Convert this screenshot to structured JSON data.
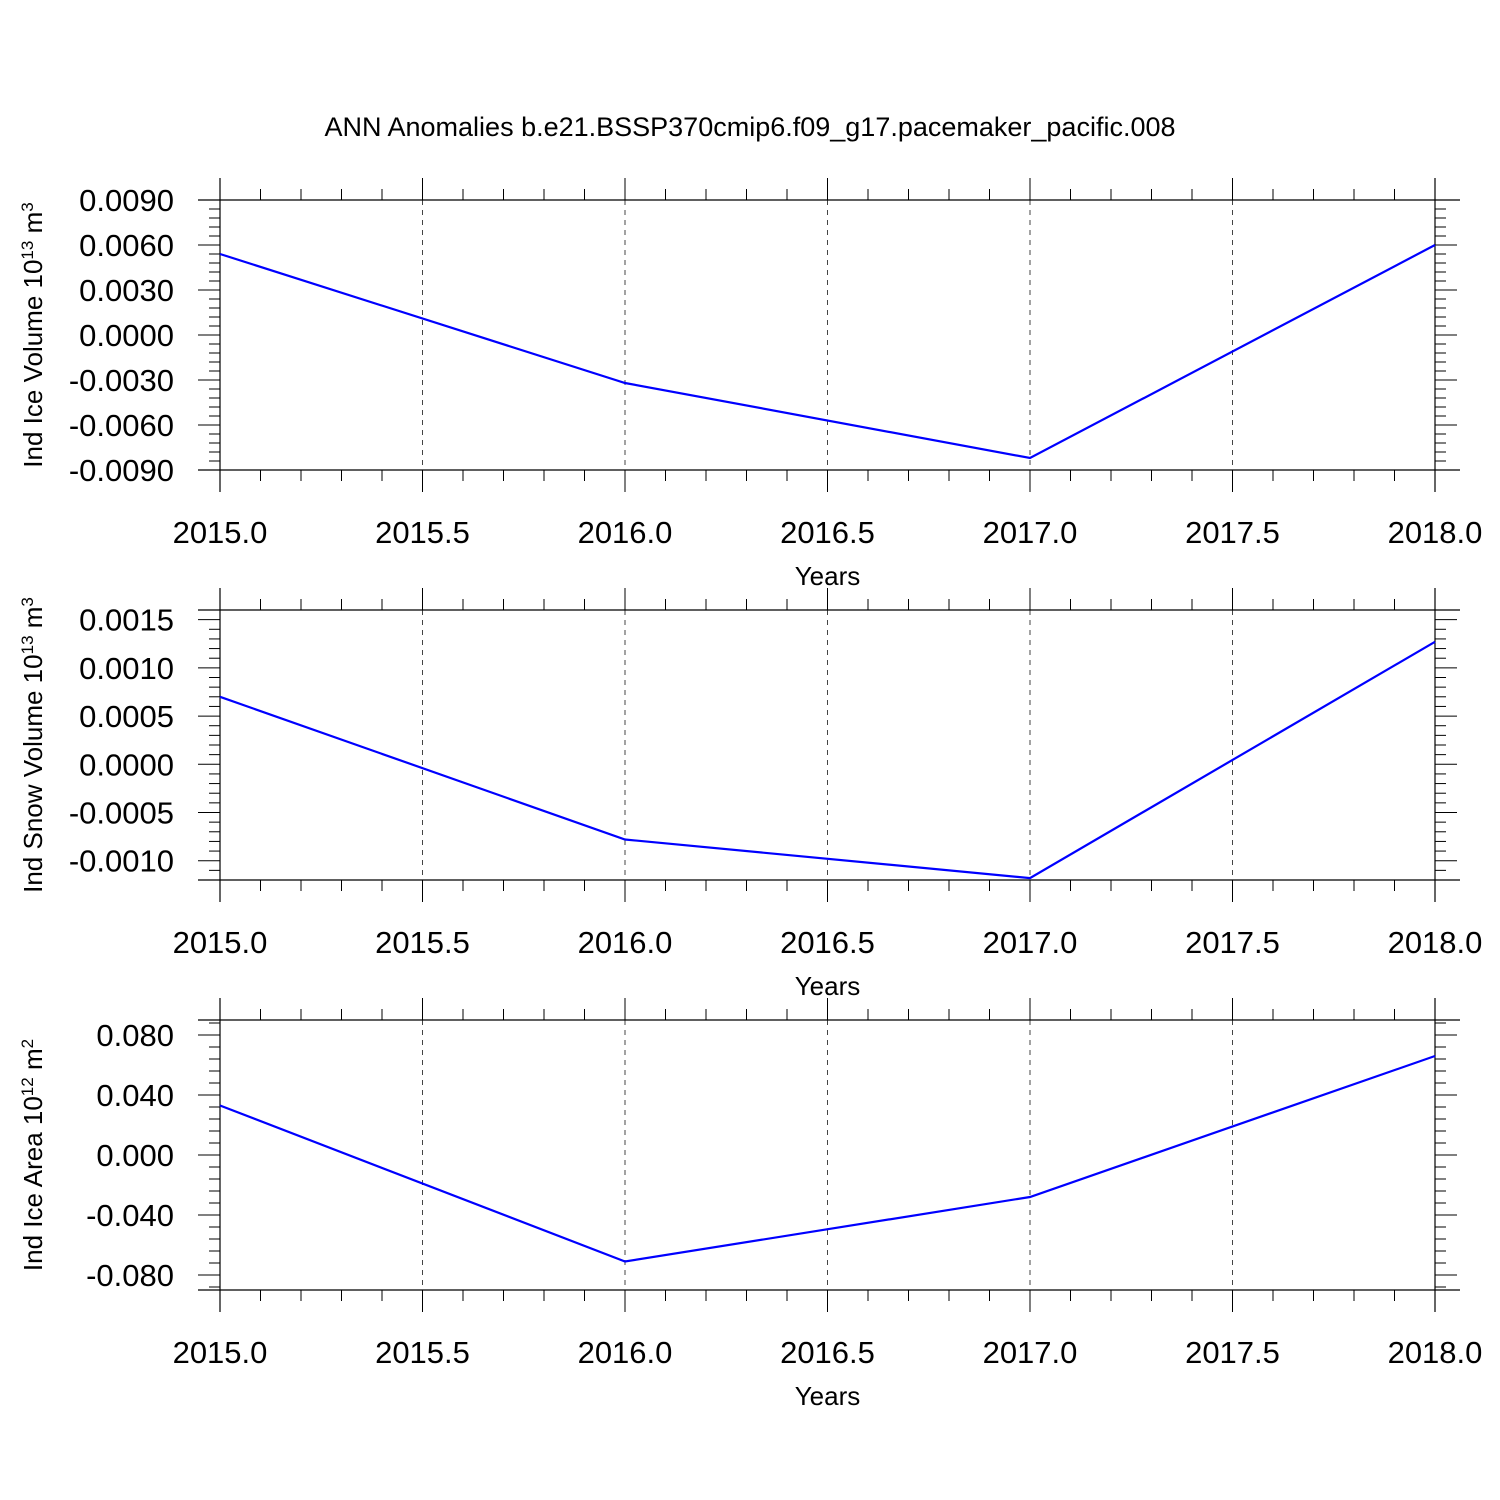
{
  "title": "ANN Anomalies b.e21.BSSP370cmip6.f09_g17.pacemaker_pacific.008",
  "line_color": "#0000ff",
  "chart_data": [
    {
      "type": "line",
      "title": "",
      "xlabel": "Years",
      "ylabel": {
        "main": "Ind Ice Volume 10",
        "exp": "13",
        "unit": " m",
        "unit_exp": "3"
      },
      "x": [
        2015,
        2016,
        2017,
        2018
      ],
      "series": [
        {
          "values": [
            0.0054,
            -0.0032,
            -0.0082,
            0.006
          ]
        }
      ],
      "xlim": [
        2015,
        2018
      ],
      "ylim": [
        -0.009,
        0.009
      ],
      "xticks": [
        2015.0,
        2015.5,
        2016.0,
        2016.5,
        2017.0,
        2017.5,
        2018.0
      ],
      "xtick_labels": [
        "2015.0",
        "2015.5",
        "2016.0",
        "2016.5",
        "2017.0",
        "2017.5",
        "2018.0"
      ],
      "yticks": [
        0.009,
        0.006,
        0.003,
        0.0,
        -0.003,
        -0.006,
        -0.009
      ],
      "ytick_labels": [
        "0.0090",
        "0.0060",
        "0.0030",
        "0.0000",
        "-0.0030",
        "-0.0060",
        "-0.0090"
      ],
      "grid": "vertical dashed at x ticks"
    },
    {
      "type": "line",
      "title": "",
      "xlabel": "Years",
      "ylabel": {
        "main": "Ind Snow Volume 10",
        "exp": "13",
        "unit": " m",
        "unit_exp": "3"
      },
      "x": [
        2015,
        2016,
        2017,
        2018
      ],
      "series": [
        {
          "values": [
            0.0007,
            -0.00078,
            -0.00118,
            0.00127
          ]
        }
      ],
      "xlim": [
        2015,
        2018
      ],
      "ylim": [
        -0.0012,
        0.0016
      ],
      "xticks": [
        2015.0,
        2015.5,
        2016.0,
        2016.5,
        2017.0,
        2017.5,
        2018.0
      ],
      "xtick_labels": [
        "2015.0",
        "2015.5",
        "2016.0",
        "2016.5",
        "2017.0",
        "2017.5",
        "2018.0"
      ],
      "yticks": [
        0.0015,
        0.001,
        0.0005,
        0.0,
        -0.0005,
        -0.001
      ],
      "ytick_labels": [
        "0.0015",
        "0.0010",
        "0.0005",
        "0.0000",
        "-0.0005",
        "-0.0010"
      ],
      "grid": "vertical dashed at x ticks"
    },
    {
      "type": "line",
      "title": "",
      "xlabel": "Years",
      "ylabel": {
        "main": "Ind Ice Area 10",
        "exp": "12",
        "unit": " m",
        "unit_exp": "2"
      },
      "x": [
        2015,
        2016,
        2017,
        2018
      ],
      "series": [
        {
          "values": [
            0.033,
            -0.071,
            -0.028,
            0.066
          ]
        }
      ],
      "xlim": [
        2015,
        2018
      ],
      "ylim": [
        -0.09,
        0.09
      ],
      "xticks": [
        2015.0,
        2015.5,
        2016.0,
        2016.5,
        2017.0,
        2017.5,
        2018.0
      ],
      "xtick_labels": [
        "2015.0",
        "2015.5",
        "2016.0",
        "2016.5",
        "2017.0",
        "2017.5",
        "2018.0"
      ],
      "yticks": [
        0.08,
        0.04,
        0.0,
        -0.04,
        -0.08
      ],
      "ytick_labels": [
        "0.080",
        "0.040",
        "0.000",
        "-0.040",
        "-0.080"
      ],
      "grid": "vertical dashed at x ticks"
    }
  ]
}
